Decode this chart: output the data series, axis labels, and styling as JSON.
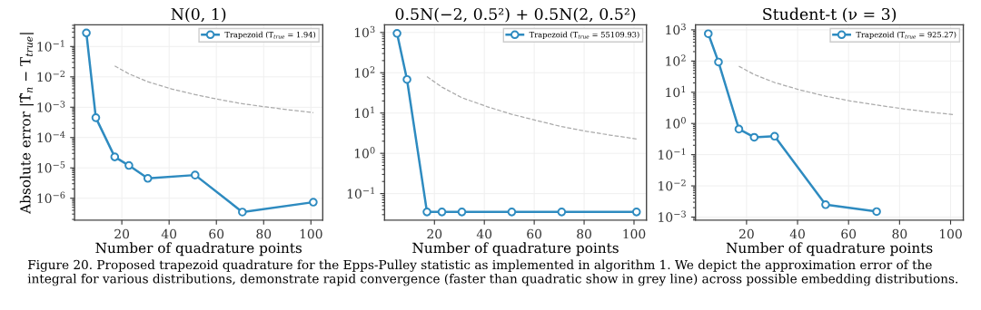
{
  "chart_data": [
    {
      "type": "line",
      "title": "N(0, 1)",
      "xlabel": "Number of quadrature points",
      "ylabel": "Absolute error |T̂$_{n}$ − T$_{true}$|",
      "log": "y",
      "grid": true,
      "legend": "top right",
      "marker": "circle",
      "xlim": [
        0,
        105
      ],
      "xticks": [
        20,
        40,
        60,
        80,
        100
      ],
      "ylim": [
        1.9e-07,
        0.52
      ],
      "yticks": [
        {
          "value": 1e-06,
          "label": "10$^{−6}$"
        },
        {
          "value": 1e-05,
          "label": "10$^{−5}$"
        },
        {
          "value": 0.0001,
          "label": "10$^{−4}$"
        },
        {
          "value": 0.001,
          "label": "10$^{−3}$"
        },
        {
          "value": 0.01,
          "label": "10$^{−2}$"
        },
        {
          "value": 0.1,
          "label": "10$^{−1}$"
        }
      ],
      "series": [
        {
          "name": "Trapezoid (T$_{true}$ = 1.94)",
          "color": "#2e8bc0",
          "x": [
            5,
            9,
            17,
            23,
            31,
            51,
            71,
            101
          ],
          "values": [
            0.28,
            0.00045,
            2.3e-05,
            1.2e-05,
            4.5e-06,
            5.8e-06,
            3.5e-07,
            7.4e-07
          ]
        },
        {
          "color": "#aaaaaa",
          "line_style": "dashed",
          "marker": "none",
          "x": [
            17,
            23,
            31,
            41,
            51,
            61,
            71,
            81,
            91,
            101
          ],
          "values": [
            0.023,
            0.0126,
            0.0069,
            0.004,
            0.0026,
            0.0018,
            0.0013,
            0.00102,
            0.00081,
            0.00066
          ]
        }
      ],
      "annotations": [
        "Figure 20. Proposed trapezoid quadrature for the Epps-Pulley statistic as implemented in algorithm 1. We depict the approximation error of the integral for various distributions, demonstrate rapid convergence (faster than quadratic show in grey line) across possible embedding distributions."
      ]
    },
    {
      "type": "line",
      "title": "0.5N(−2, 0.5²) + 0.5N(2, 0.5²)",
      "xlabel": "Number of quadrature points",
      "log": "y",
      "grid": true,
      "legend": "top right",
      "marker": "circle",
      "xlim": [
        0,
        105
      ],
      "xticks": [
        20,
        40,
        60,
        80,
        100
      ],
      "ylim": [
        0.022,
        1550
      ],
      "yticks": [
        {
          "value": 0.1,
          "label": "10$^{−1}$"
        },
        {
          "value": 1,
          "label": "10$^{0}$"
        },
        {
          "value": 10,
          "label": "10$^{1}$"
        },
        {
          "value": 100,
          "label": "10$^{2}$"
        },
        {
          "value": 1000,
          "label": "10$^{3}$"
        }
      ],
      "series": [
        {
          "name": "Trapezoid (T$_{true}$ = 55109.93)",
          "color": "#2e8bc0",
          "x": [
            5,
            9,
            17,
            23,
            31,
            51,
            71,
            101
          ],
          "values": [
            950,
            68,
            0.035,
            0.035,
            0.035,
            0.035,
            0.035,
            0.035
          ]
        },
        {
          "color": "#aaaaaa",
          "line_style": "dashed",
          "marker": "none",
          "x": [
            17,
            23,
            31,
            41,
            51,
            61,
            71,
            81,
            91,
            101
          ],
          "values": [
            80,
            44,
            24,
            14.5,
            9.3,
            6.5,
            4.6,
            3.5,
            2.8,
            2.27
          ]
        }
      ]
    },
    {
      "type": "line",
      "title": "Student-t (ν = 3)",
      "xlabel": "Number of quadrature points",
      "log": "y",
      "grid": true,
      "legend": "top right",
      "marker": "circle",
      "xlim": [
        0,
        105
      ],
      "xticks": [
        20,
        40,
        60,
        80,
        100
      ],
      "ylim": [
        0.0008,
        1450
      ],
      "yticks": [
        {
          "value": 0.001,
          "label": "10$^{−3}$"
        },
        {
          "value": 0.01,
          "label": "10$^{−2}$"
        },
        {
          "value": 0.1,
          "label": "10$^{−1}$"
        },
        {
          "value": 1,
          "label": "10$^{0}$"
        },
        {
          "value": 10,
          "label": "10$^{1}$"
        },
        {
          "value": 100,
          "label": "10$^{2}$"
        },
        {
          "value": 1000,
          "label": "10$^{3}$"
        }
      ],
      "series": [
        {
          "name": "Trapezoid (T$_{true}$ = 925.27)",
          "color": "#2e8bc0",
          "x": [
            5,
            9,
            17,
            23,
            31,
            51,
            71
          ],
          "values": [
            750,
            93,
            0.66,
            0.36,
            0.39,
            0.0025,
            0.0015
          ]
        },
        {
          "color": "#aaaaaa",
          "line_style": "dashed",
          "marker": "none",
          "x": [
            17,
            23,
            31,
            41,
            51,
            61,
            71,
            81,
            91,
            101
          ],
          "values": [
            68,
            37,
            20.5,
            11.8,
            7.5,
            5.2,
            3.9,
            2.98,
            2.35,
            1.92
          ]
        }
      ]
    }
  ]
}
